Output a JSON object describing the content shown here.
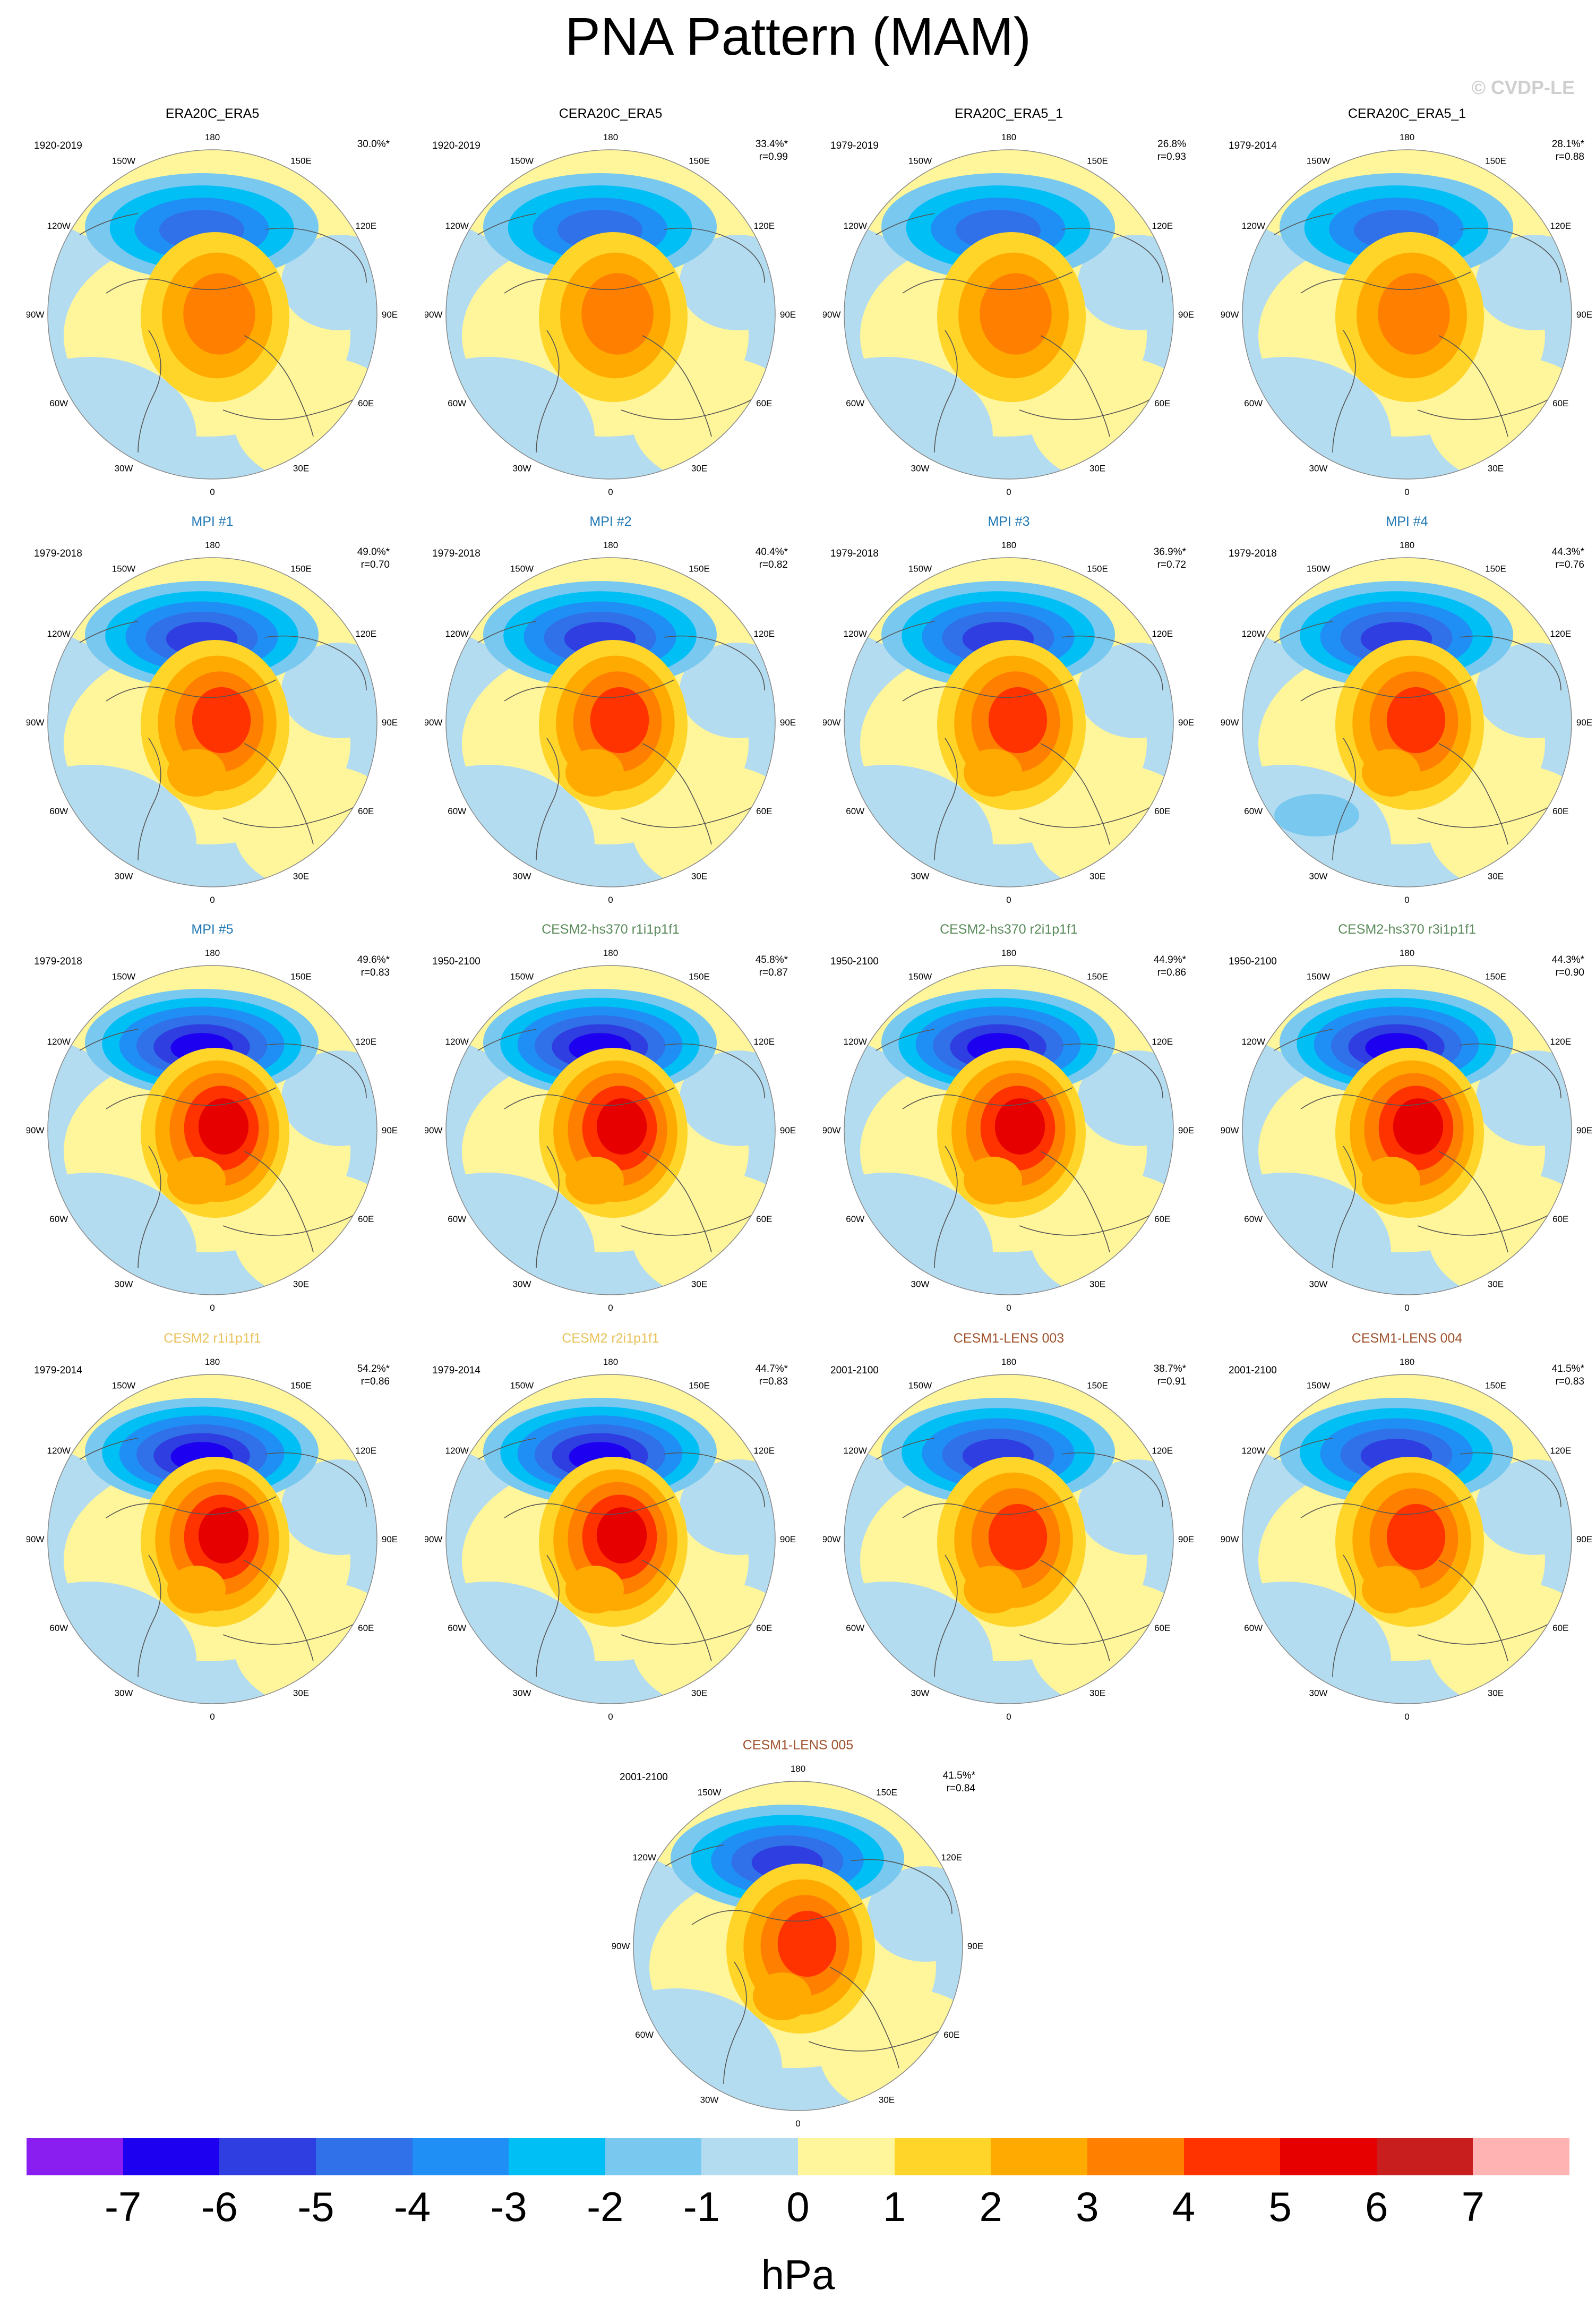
{
  "page": {
    "title": "PNA Pattern (MAM)",
    "copyright": "© CVDP-LE"
  },
  "lon_labels": [
    "180",
    "150E",
    "120E",
    "90E",
    "60E",
    "30E",
    "0",
    "30W",
    "60W",
    "90W",
    "120W",
    "150W"
  ],
  "panels": [
    {
      "title": "ERA20C_ERA5",
      "title_color": "#000000",
      "period": "1920-2019",
      "pct": "30.0%*",
      "r": "",
      "strength": 0.55,
      "ring": false
    },
    {
      "title": "CERA20C_ERA5",
      "title_color": "#000000",
      "period": "1920-2019",
      "pct": "33.4%*",
      "r": "r=0.99",
      "strength": 0.55,
      "ring": false
    },
    {
      "title": "ERA20C_ERA5_1",
      "title_color": "#000000",
      "period": "1979-2019",
      "pct": "26.8%",
      "r": "r=0.93",
      "strength": 0.55,
      "ring": false
    },
    {
      "title": "CERA20C_ERA5_1",
      "title_color": "#000000",
      "period": "1979-2014",
      "pct": "28.1%*",
      "r": "r=0.88",
      "strength": 0.6,
      "ring": false
    },
    {
      "title": "MPI #1",
      "title_color": "#1f77b4",
      "period": "1979-2018",
      "pct": "49.0%*",
      "r": "r=0.70",
      "strength": 0.8,
      "ring": false
    },
    {
      "title": "MPI #2",
      "title_color": "#1f77b4",
      "period": "1979-2018",
      "pct": "40.4%*",
      "r": "r=0.82",
      "strength": 0.75,
      "ring": false
    },
    {
      "title": "MPI #3",
      "title_color": "#1f77b4",
      "period": "1979-2018",
      "pct": "36.9%*",
      "r": "r=0.72",
      "strength": 0.7,
      "ring": false
    },
    {
      "title": "MPI #4",
      "title_color": "#1f77b4",
      "period": "1979-2018",
      "pct": "44.3%*",
      "r": "r=0.76",
      "strength": 0.85,
      "ring": true
    },
    {
      "title": "MPI #5",
      "title_color": "#1f77b4",
      "period": "1979-2018",
      "pct": "49.6%*",
      "r": "r=0.83",
      "strength": 0.9,
      "ring": false
    },
    {
      "title": "CESM2-hs370 r1i1p1f1",
      "title_color": "#5a8a5a",
      "period": "1950-2100",
      "pct": "45.8%*",
      "r": "r=0.87",
      "strength": 1.0,
      "ring": false
    },
    {
      "title": "CESM2-hs370 r2i1p1f1",
      "title_color": "#5a8a5a",
      "period": "1950-2100",
      "pct": "44.9%*",
      "r": "r=0.86",
      "strength": 0.95,
      "ring": false
    },
    {
      "title": "CESM2-hs370 r3i1p1f1",
      "title_color": "#5a8a5a",
      "period": "1950-2100",
      "pct": "44.3%*",
      "r": "r=0.90",
      "strength": 0.95,
      "ring": false
    },
    {
      "title": "CESM2 r1i1p1f1",
      "title_color": "#e8c25a",
      "period": "1979-2014",
      "pct": "54.2%*",
      "r": "r=0.86",
      "strength": 1.0,
      "ring": false
    },
    {
      "title": "CESM2 r2i1p1f1",
      "title_color": "#e8c25a",
      "period": "1979-2014",
      "pct": "44.7%*",
      "r": "r=0.83",
      "strength": 0.9,
      "ring": false
    },
    {
      "title": "CESM1-LENS 003",
      "title_color": "#a0522d",
      "period": "2001-2100",
      "pct": "38.7%*",
      "r": "r=0.91",
      "strength": 0.75,
      "ring": false
    },
    {
      "title": "CESM1-LENS 004",
      "title_color": "#a0522d",
      "period": "2001-2100",
      "pct": "41.5%*",
      "r": "r=0.83",
      "strength": 0.85,
      "ring": false
    },
    {
      "title": "CESM1-LENS 005",
      "title_color": "#a0522d",
      "period": "2001-2100",
      "pct": "41.5%*",
      "r": "r=0.84",
      "strength": 0.85,
      "ring": false
    }
  ],
  "colorbar": {
    "colors": [
      "#8a1ef0",
      "#1e00f0",
      "#2f3ee0",
      "#3070e8",
      "#1f8ff5",
      "#00bff5",
      "#78c8f0",
      "#b4dcf0",
      "#fff59a",
      "#ffd52a",
      "#ffaa00",
      "#ff7f00",
      "#ff3300",
      "#e60000",
      "#c81e1e",
      "#ffb3b3"
    ],
    "tick_labels": [
      "-7",
      "-6",
      "-5",
      "-4",
      "-3",
      "-2",
      "-1",
      "0",
      "1",
      "2",
      "3",
      "4",
      "5",
      "6",
      "7"
    ],
    "unit": "hPa"
  }
}
